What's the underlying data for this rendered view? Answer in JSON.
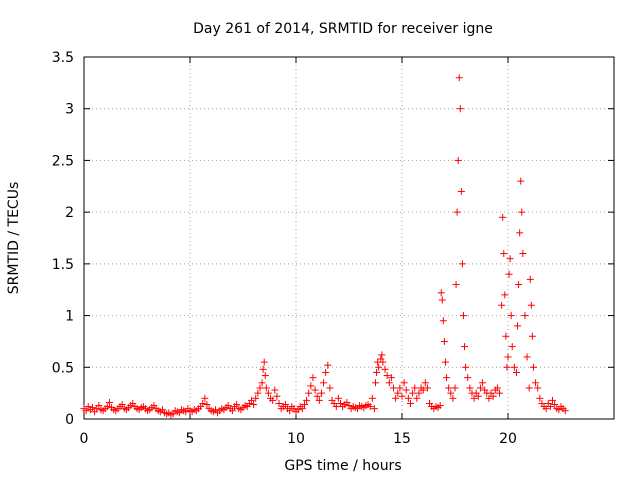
{
  "chart_data": {
    "type": "scatter",
    "title": "Day 261 of 2014, SRMTID for receiver igne",
    "xlabel": "GPS time / hours",
    "ylabel": "SRMTID / TECUs",
    "xlim": [
      0,
      25
    ],
    "ylim": [
      0,
      3.5
    ],
    "xticks": [
      0,
      5,
      10,
      15,
      20
    ],
    "yticks": [
      0,
      0.5,
      1,
      1.5,
      2,
      2.5,
      3,
      3.5
    ],
    "xtick_labels": [
      "0",
      "5",
      "10",
      "15",
      "20"
    ],
    "ytick_labels": [
      "0",
      "0.5",
      "1",
      "1.5",
      "2",
      "2.5",
      "3",
      "3.5"
    ],
    "grid": true,
    "marker": "+",
    "color": "#ff0000",
    "series": [
      {
        "name": "SRMTID",
        "points": [
          [
            0.0,
            0.1
          ],
          [
            0.1,
            0.08
          ],
          [
            0.2,
            0.12
          ],
          [
            0.3,
            0.09
          ],
          [
            0.4,
            0.11
          ],
          [
            0.5,
            0.07
          ],
          [
            0.6,
            0.1
          ],
          [
            0.7,
            0.13
          ],
          [
            0.8,
            0.09
          ],
          [
            0.9,
            0.08
          ],
          [
            1.0,
            0.1
          ],
          [
            1.1,
            0.12
          ],
          [
            1.2,
            0.16
          ],
          [
            1.3,
            0.11
          ],
          [
            1.4,
            0.09
          ],
          [
            1.5,
            0.08
          ],
          [
            1.6,
            0.1
          ],
          [
            1.7,
            0.12
          ],
          [
            1.8,
            0.14
          ],
          [
            1.9,
            0.1
          ],
          [
            2.0,
            0.09
          ],
          [
            2.1,
            0.11
          ],
          [
            2.2,
            0.13
          ],
          [
            2.3,
            0.15
          ],
          [
            2.4,
            0.12
          ],
          [
            2.5,
            0.1
          ],
          [
            2.6,
            0.09
          ],
          [
            2.7,
            0.11
          ],
          [
            2.8,
            0.12
          ],
          [
            2.9,
            0.1
          ],
          [
            3.0,
            0.08
          ],
          [
            3.1,
            0.09
          ],
          [
            3.2,
            0.11
          ],
          [
            3.3,
            0.13
          ],
          [
            3.4,
            0.1
          ],
          [
            3.5,
            0.08
          ],
          [
            3.6,
            0.07
          ],
          [
            3.7,
            0.09
          ],
          [
            3.8,
            0.06
          ],
          [
            3.9,
            0.05
          ],
          [
            4.0,
            0.06
          ],
          [
            4.1,
            0.04
          ],
          [
            4.2,
            0.05
          ],
          [
            4.3,
            0.08
          ],
          [
            4.4,
            0.07
          ],
          [
            4.5,
            0.06
          ],
          [
            4.6,
            0.09
          ],
          [
            4.7,
            0.08
          ],
          [
            4.8,
            0.07
          ],
          [
            4.9,
            0.1
          ],
          [
            5.0,
            0.08
          ],
          [
            5.1,
            0.07
          ],
          [
            5.2,
            0.09
          ],
          [
            5.3,
            0.08
          ],
          [
            5.4,
            0.1
          ],
          [
            5.5,
            0.12
          ],
          [
            5.6,
            0.15
          ],
          [
            5.7,
            0.2
          ],
          [
            5.8,
            0.14
          ],
          [
            5.9,
            0.1
          ],
          [
            6.0,
            0.08
          ],
          [
            6.1,
            0.07
          ],
          [
            6.2,
            0.09
          ],
          [
            6.3,
            0.06
          ],
          [
            6.4,
            0.08
          ],
          [
            6.5,
            0.1
          ],
          [
            6.6,
            0.09
          ],
          [
            6.7,
            0.11
          ],
          [
            6.8,
            0.13
          ],
          [
            6.9,
            0.1
          ],
          [
            7.0,
            0.08
          ],
          [
            7.1,
            0.12
          ],
          [
            7.2,
            0.14
          ],
          [
            7.3,
            0.1
          ],
          [
            7.4,
            0.09
          ],
          [
            7.5,
            0.11
          ],
          [
            7.6,
            0.13
          ],
          [
            7.7,
            0.12
          ],
          [
            7.8,
            0.15
          ],
          [
            7.9,
            0.18
          ],
          [
            8.0,
            0.14
          ],
          [
            8.1,
            0.2
          ],
          [
            8.2,
            0.25
          ],
          [
            8.3,
            0.3
          ],
          [
            8.4,
            0.35
          ],
          [
            8.45,
            0.48
          ],
          [
            8.5,
            0.55
          ],
          [
            8.55,
            0.42
          ],
          [
            8.6,
            0.3
          ],
          [
            8.7,
            0.25
          ],
          [
            8.8,
            0.2
          ],
          [
            8.9,
            0.18
          ],
          [
            9.0,
            0.28
          ],
          [
            9.1,
            0.22
          ],
          [
            9.2,
            0.15
          ],
          [
            9.3,
            0.1
          ],
          [
            9.4,
            0.12
          ],
          [
            9.5,
            0.14
          ],
          [
            9.6,
            0.1
          ],
          [
            9.7,
            0.08
          ],
          [
            9.8,
            0.12
          ],
          [
            9.9,
            0.1
          ],
          [
            10.0,
            0.07
          ],
          [
            10.1,
            0.09
          ],
          [
            10.2,
            0.12
          ],
          [
            10.3,
            0.1
          ],
          [
            10.4,
            0.14
          ],
          [
            10.5,
            0.18
          ],
          [
            10.6,
            0.25
          ],
          [
            10.7,
            0.32
          ],
          [
            10.8,
            0.4
          ],
          [
            10.9,
            0.28
          ],
          [
            11.0,
            0.22
          ],
          [
            11.1,
            0.18
          ],
          [
            11.2,
            0.25
          ],
          [
            11.3,
            0.35
          ],
          [
            11.4,
            0.45
          ],
          [
            11.5,
            0.52
          ],
          [
            11.6,
            0.3
          ],
          [
            11.7,
            0.18
          ],
          [
            11.8,
            0.15
          ],
          [
            11.9,
            0.12
          ],
          [
            12.0,
            0.2
          ],
          [
            12.1,
            0.15
          ],
          [
            12.2,
            0.12
          ],
          [
            12.3,
            0.14
          ],
          [
            12.4,
            0.16
          ],
          [
            12.5,
            0.13
          ],
          [
            12.6,
            0.1
          ],
          [
            12.7,
            0.12
          ],
          [
            12.8,
            0.11
          ],
          [
            12.9,
            0.1
          ],
          [
            13.0,
            0.13
          ],
          [
            13.1,
            0.12
          ],
          [
            13.2,
            0.11
          ],
          [
            13.3,
            0.13
          ],
          [
            13.4,
            0.14
          ],
          [
            13.5,
            0.12
          ],
          [
            13.6,
            0.2
          ],
          [
            13.7,
            0.1
          ],
          [
            13.75,
            0.35
          ],
          [
            13.8,
            0.45
          ],
          [
            13.85,
            0.55
          ],
          [
            13.9,
            0.5
          ],
          [
            14.0,
            0.58
          ],
          [
            14.05,
            0.62
          ],
          [
            14.1,
            0.55
          ],
          [
            14.2,
            0.48
          ],
          [
            14.3,
            0.42
          ],
          [
            14.4,
            0.35
          ],
          [
            14.5,
            0.4
          ],
          [
            14.6,
            0.3
          ],
          [
            14.7,
            0.2
          ],
          [
            14.8,
            0.25
          ],
          [
            14.9,
            0.3
          ],
          [
            15.0,
            0.22
          ],
          [
            15.1,
            0.35
          ],
          [
            15.2,
            0.28
          ],
          [
            15.3,
            0.2
          ],
          [
            15.4,
            0.15
          ],
          [
            15.5,
            0.25
          ],
          [
            15.6,
            0.3
          ],
          [
            15.7,
            0.2
          ],
          [
            15.8,
            0.25
          ],
          [
            15.9,
            0.3
          ],
          [
            16.0,
            0.28
          ],
          [
            16.1,
            0.35
          ],
          [
            16.2,
            0.3
          ],
          [
            16.3,
            0.15
          ],
          [
            16.4,
            0.12
          ],
          [
            16.5,
            0.1
          ],
          [
            16.6,
            0.12
          ],
          [
            16.7,
            0.11
          ],
          [
            16.8,
            0.13
          ],
          [
            16.85,
            1.22
          ],
          [
            16.9,
            1.15
          ],
          [
            16.95,
            0.95
          ],
          [
            17.0,
            0.75
          ],
          [
            17.05,
            0.55
          ],
          [
            17.1,
            0.4
          ],
          [
            17.2,
            0.3
          ],
          [
            17.3,
            0.25
          ],
          [
            17.4,
            0.2
          ],
          [
            17.5,
            0.3
          ],
          [
            17.55,
            1.3
          ],
          [
            17.6,
            2.0
          ],
          [
            17.65,
            2.5
          ],
          [
            17.7,
            3.3
          ],
          [
            17.75,
            3.0
          ],
          [
            17.8,
            2.2
          ],
          [
            17.85,
            1.5
          ],
          [
            17.9,
            1.0
          ],
          [
            17.95,
            0.7
          ],
          [
            18.0,
            0.5
          ],
          [
            18.1,
            0.4
          ],
          [
            18.2,
            0.3
          ],
          [
            18.3,
            0.25
          ],
          [
            18.4,
            0.2
          ],
          [
            18.5,
            0.25
          ],
          [
            18.6,
            0.22
          ],
          [
            18.7,
            0.3
          ],
          [
            18.8,
            0.35
          ],
          [
            18.9,
            0.28
          ],
          [
            19.0,
            0.25
          ],
          [
            19.1,
            0.2
          ],
          [
            19.2,
            0.25
          ],
          [
            19.3,
            0.22
          ],
          [
            19.4,
            0.28
          ],
          [
            19.5,
            0.3
          ],
          [
            19.6,
            0.25
          ],
          [
            19.7,
            1.1
          ],
          [
            19.75,
            1.95
          ],
          [
            19.8,
            1.6
          ],
          [
            19.85,
            1.2
          ],
          [
            19.9,
            0.8
          ],
          [
            19.95,
            0.5
          ],
          [
            20.0,
            0.6
          ],
          [
            20.05,
            1.4
          ],
          [
            20.1,
            1.55
          ],
          [
            20.15,
            1.0
          ],
          [
            20.2,
            0.7
          ],
          [
            20.3,
            0.5
          ],
          [
            20.4,
            0.45
          ],
          [
            20.45,
            0.9
          ],
          [
            20.5,
            1.3
          ],
          [
            20.55,
            1.8
          ],
          [
            20.6,
            2.3
          ],
          [
            20.65,
            2.0
          ],
          [
            20.7,
            1.6
          ],
          [
            20.8,
            1.0
          ],
          [
            20.9,
            0.6
          ],
          [
            21.0,
            0.3
          ],
          [
            21.05,
            1.35
          ],
          [
            21.1,
            1.1
          ],
          [
            21.15,
            0.8
          ],
          [
            21.2,
            0.5
          ],
          [
            21.3,
            0.35
          ],
          [
            21.4,
            0.3
          ],
          [
            21.5,
            0.2
          ],
          [
            21.6,
            0.15
          ],
          [
            21.7,
            0.12
          ],
          [
            21.8,
            0.1
          ],
          [
            21.9,
            0.15
          ],
          [
            22.0,
            0.12
          ],
          [
            22.1,
            0.18
          ],
          [
            22.2,
            0.14
          ],
          [
            22.3,
            0.1
          ],
          [
            22.4,
            0.09
          ],
          [
            22.5,
            0.12
          ],
          [
            22.6,
            0.1
          ],
          [
            22.7,
            0.08
          ]
        ]
      }
    ]
  }
}
